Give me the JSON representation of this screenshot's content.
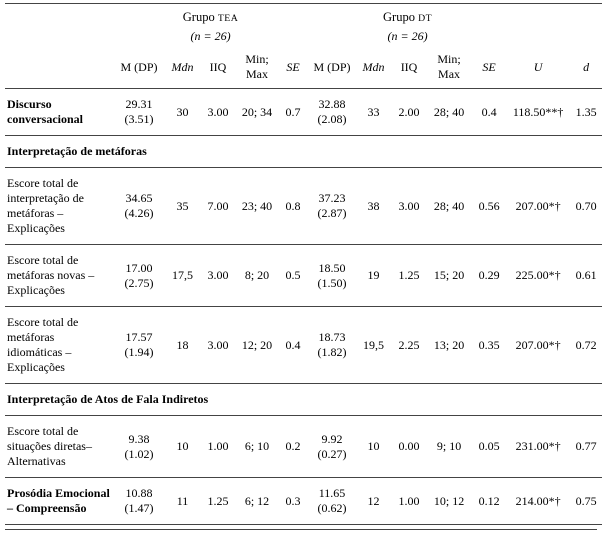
{
  "header": {
    "group_tea": {
      "prefix": "Grupo ",
      "acronym": "TEA",
      "n_label": "(n = 26)"
    },
    "group_dt": {
      "prefix": "Grupo ",
      "acronym": "DT",
      "n_label": "(n = 26)"
    },
    "columns": {
      "tea_m": "M (DP)",
      "tea_mdn": "Mdn",
      "tea_iiq": "IIQ",
      "tea_minmax": "Min; Max",
      "tea_se": "SE",
      "dt_m": "M (DP)",
      "dt_mdn": "Mdn",
      "dt_iiq": "IIQ",
      "dt_minmax": "Min; Max",
      "dt_se": "SE",
      "u": "U",
      "d": "d"
    }
  },
  "table": {
    "rows": [
      {
        "label": "Discurso conversacional",
        "bold": true,
        "cells": [
          "29.31\n(3.51)",
          "30",
          "3.00",
          "20; 34",
          "0.7",
          "32.88\n(2.08)",
          "33",
          "2.00",
          "28; 40",
          "0.4",
          "118.50**†",
          "1.35"
        ]
      },
      {
        "label": "Interpretação de metáforas",
        "section": true
      },
      {
        "label": "Escore total de interpretação de metáforas – Explicações",
        "bold": false,
        "cells": [
          "34.65\n(4.26)",
          "35",
          "7.00",
          "23; 40",
          "0.8",
          "37.23\n(2.87)",
          "38",
          "3.00",
          "28; 40",
          "0.56",
          "207.00*†",
          "0.70"
        ]
      },
      {
        "label": "Escore total de metáforas novas – Explicações",
        "bold": false,
        "cells": [
          "17.00\n(2.75)",
          "17,5",
          "3.00",
          "8; 20",
          "0.5",
          "18.50\n(1.50)",
          "19",
          "1.25",
          "15; 20",
          "0.29",
          "225.00*†",
          "0.61"
        ]
      },
      {
        "label": "Escore total de metáforas idiomáticas – Explicações",
        "bold": false,
        "cells": [
          "17.57\n(1.94)",
          "18",
          "3.00",
          "12; 20",
          "0.4",
          "18.73\n(1.82)",
          "19,5",
          "2.25",
          "13; 20",
          "0.35",
          "207.00*†",
          "0.72"
        ]
      },
      {
        "label": "Interpretação de Atos de Fala Indiretos",
        "section": true
      },
      {
        "label": "Escore total de situações diretas– Alternativas",
        "bold": false,
        "cells": [
          "9.38\n(1.02)",
          "10",
          "1.00",
          "6; 10",
          "0.2",
          "9.92\n(0.27)",
          "10",
          "0.00",
          "9; 10",
          "0.05",
          "231.00*†",
          "0.77"
        ]
      },
      {
        "label": "Prosódia Emocional – Compreensão",
        "bold": true,
        "cells": [
          "10.88\n(1.47)",
          "11",
          "1.25",
          "6; 12",
          "0.3",
          "11.65\n(0.62)",
          "12",
          "1.00",
          "10; 12",
          "0.12",
          "214.00*†",
          "0.75"
        ]
      }
    ]
  }
}
